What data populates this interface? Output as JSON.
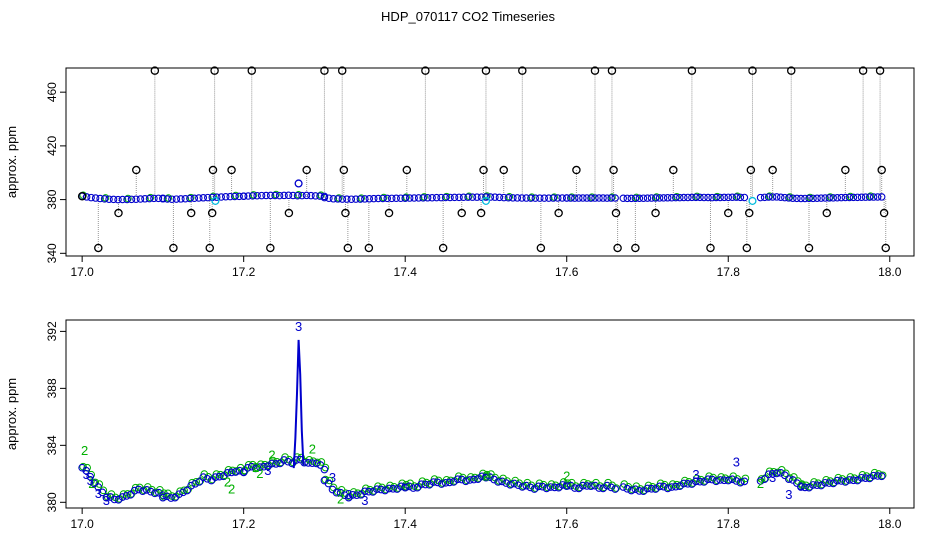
{
  "title": "HDP_070117  CO2 Timeseries",
  "colors": {
    "raw": "#000000",
    "blue": "#0000cc",
    "green": "#00b000",
    "cyan": "#00bbdd",
    "line": "#999999"
  },
  "chart_data": [
    {
      "type": "scatter",
      "panel": "top",
      "ylabel": "approx. ppm",
      "xlim": [
        16.98,
        18.03
      ],
      "ylim": [
        338,
        478
      ],
      "xticks": [
        17.0,
        17.2,
        17.4,
        17.6,
        17.8,
        18.0
      ],
      "xtick_labels": [
        "17.0",
        "17.2",
        "17.4",
        "17.6",
        "17.8",
        "18.0"
      ],
      "yticks": [
        340,
        380,
        420,
        460
      ],
      "ytick_labels": [
        "340",
        "380",
        "420",
        "460"
      ],
      "baseline_series": [
        {
          "x_start": 17.0,
          "x_end": 17.1,
          "y": [
            382.5,
            381.5,
            380.8,
            380.3,
            380.0,
            380.1,
            380.3,
            380.6,
            380.9,
            381.0
          ]
        },
        {
          "x_start": 17.1,
          "x_end": 17.2,
          "y": [
            380.6,
            380.3,
            380.5,
            380.8,
            381.2,
            381.5,
            381.8,
            382.1,
            382.3,
            382.5
          ]
        },
        {
          "x_start": 17.2,
          "x_end": 17.3,
          "y": [
            382.6,
            382.8,
            383.0,
            383.1,
            383.0,
            383.2,
            382.9,
            383.1,
            382.8,
            382.4
          ]
        },
        {
          "x_start": 17.3,
          "x_end": 17.4,
          "y": [
            381.5,
            380.6,
            380.4,
            380.3,
            380.4,
            380.6,
            380.8,
            380.9,
            381.0,
            381.1
          ]
        },
        {
          "x_start": 17.4,
          "x_end": 17.5,
          "y": [
            381.1,
            381.2,
            381.3,
            381.4,
            381.5,
            381.6,
            381.7,
            381.8,
            381.8,
            381.9
          ]
        },
        {
          "x_start": 17.5,
          "x_end": 17.6,
          "y": [
            382.0,
            381.8,
            381.5,
            381.3,
            381.2,
            381.1,
            381.1,
            381.1,
            381.2,
            381.2
          ]
        },
        {
          "x_start": 17.6,
          "x_end": 17.66,
          "y": [
            381.2,
            381.1,
            381.2,
            381.1,
            381.2,
            381.1,
            381.2
          ]
        },
        {
          "x_start": 17.67,
          "x_end": 17.82,
          "y": [
            381.0,
            380.9,
            381.0,
            381.1,
            381.2,
            381.3,
            381.4,
            381.5,
            381.6,
            381.7,
            381.6,
            381.5,
            381.6,
            381.7,
            381.8,
            381.6
          ]
        },
        {
          "x_start": 17.84,
          "x_end": 17.99,
          "y": [
            381.5,
            381.9,
            382.0,
            381.5,
            381.0,
            380.8,
            380.9,
            381.0,
            381.2,
            381.3,
            381.5,
            381.6,
            381.7,
            381.8,
            381.9,
            382.0
          ]
        }
      ],
      "raw_samples": [
        [
          17.0,
          382.5
        ],
        [
          17.02,
          344
        ],
        [
          17.045,
          370
        ],
        [
          17.067,
          402
        ],
        [
          17.09,
          476
        ],
        [
          17.113,
          344
        ],
        [
          17.135,
          370
        ],
        [
          17.158,
          344
        ],
        [
          17.161,
          370
        ],
        [
          17.162,
          402
        ],
        [
          17.164,
          476
        ],
        [
          17.185,
          402
        ],
        [
          17.21,
          476
        ],
        [
          17.233,
          344
        ],
        [
          17.256,
          370
        ],
        [
          17.278,
          402
        ],
        [
          17.3,
          476
        ],
        [
          17.322,
          476
        ],
        [
          17.324,
          402
        ],
        [
          17.326,
          370
        ],
        [
          17.329,
          344
        ],
        [
          17.355,
          344
        ],
        [
          17.38,
          370
        ],
        [
          17.402,
          402
        ],
        [
          17.425,
          476
        ],
        [
          17.447,
          344
        ],
        [
          17.47,
          370
        ],
        [
          17.494,
          370
        ],
        [
          17.497,
          402
        ],
        [
          17.5,
          476
        ],
        [
          17.522,
          402
        ],
        [
          17.545,
          476
        ],
        [
          17.568,
          344
        ],
        [
          17.59,
          370
        ],
        [
          17.612,
          402
        ],
        [
          17.635,
          476
        ],
        [
          17.656,
          476
        ],
        [
          17.658,
          402
        ],
        [
          17.661,
          370
        ],
        [
          17.663,
          344
        ],
        [
          17.685,
          344
        ],
        [
          17.71,
          370
        ],
        [
          17.732,
          402
        ],
        [
          17.755,
          476
        ],
        [
          17.778,
          344
        ],
        [
          17.8,
          370
        ],
        [
          17.823,
          344
        ],
        [
          17.826,
          370
        ],
        [
          17.828,
          402
        ],
        [
          17.83,
          476
        ],
        [
          17.855,
          402
        ],
        [
          17.878,
          476
        ],
        [
          17.9,
          344
        ],
        [
          17.922,
          370
        ],
        [
          17.945,
          402
        ],
        [
          17.967,
          476
        ],
        [
          17.988,
          476
        ],
        [
          17.99,
          402
        ],
        [
          17.993,
          370
        ],
        [
          17.995,
          344
        ]
      ],
      "blue_outliers": [
        [
          17.268,
          392
        ]
      ],
      "cyan_points": [
        [
          17.165,
          379
        ],
        [
          17.5,
          379
        ],
        [
          17.83,
          379
        ]
      ]
    },
    {
      "type": "scatter",
      "panel": "bottom",
      "ylabel": "approx. ppm",
      "xlim": [
        16.98,
        18.03
      ],
      "ylim": [
        379.6,
        392.8
      ],
      "xticks": [
        17.0,
        17.2,
        17.4,
        17.6,
        17.8,
        18.0
      ],
      "xtick_labels": [
        "17.0",
        "17.2",
        "17.4",
        "17.6",
        "17.8",
        "18.0"
      ],
      "yticks": [
        380,
        384,
        388,
        392
      ],
      "ytick_labels": [
        "380",
        "384",
        "388",
        "392"
      ],
      "marker_symbol_blue": "o",
      "marker_symbol_green": "o",
      "segments": [
        {
          "x_start": 17.0,
          "x_end": 17.1,
          "y": [
            382.5,
            381.8,
            381.0,
            380.4,
            380.2,
            380.3,
            380.6,
            380.9,
            380.8,
            380.7,
            380.5
          ]
        },
        {
          "x_start": 17.1,
          "x_end": 17.2,
          "y": [
            380.4,
            380.3,
            380.5,
            380.9,
            381.3,
            381.7,
            381.6,
            381.8,
            382.0,
            382.2,
            382.1
          ]
        },
        {
          "x_start": 17.2,
          "x_end": 17.3,
          "y": [
            382.2,
            382.5,
            382.4,
            382.6,
            382.7,
            382.9,
            382.8,
            383.0,
            382.7,
            382.8,
            382.3
          ]
        },
        {
          "x_start": 17.3,
          "x_end": 17.4,
          "y": [
            381.6,
            380.9,
            380.6,
            380.4,
            380.5,
            380.7,
            380.8,
            380.9,
            380.9,
            381.0,
            381.1
          ]
        },
        {
          "x_start": 17.4,
          "x_end": 17.5,
          "y": [
            381.1,
            381.0,
            381.2,
            381.3,
            381.4,
            381.3,
            381.5,
            381.6,
            381.5,
            381.7,
            381.8
          ]
        },
        {
          "x_start": 17.5,
          "x_end": 17.6,
          "y": [
            381.8,
            381.6,
            381.4,
            381.3,
            381.2,
            381.1,
            381.0,
            381.1,
            381.0,
            381.1,
            381.2
          ]
        },
        {
          "x_start": 17.6,
          "x_end": 17.66,
          "y": [
            381.2,
            381.0,
            381.1,
            381.2,
            381.0,
            381.1,
            381.0
          ]
        },
        {
          "x_start": 17.67,
          "x_end": 17.82,
          "y": [
            381.0,
            380.9,
            380.8,
            380.9,
            381.0,
            381.1,
            381.0,
            381.2,
            381.3,
            381.4,
            381.5,
            381.6,
            381.5,
            381.6,
            381.5,
            381.4
          ]
        },
        {
          "x_start": 17.84,
          "x_end": 17.89,
          "y": [
            381.5,
            381.9,
            382.1,
            381.9,
            381.5,
            381.2
          ]
        },
        {
          "x_start": 17.89,
          "x_end": 17.99,
          "y": [
            381.0,
            381.1,
            381.2,
            381.3,
            381.4,
            381.5,
            381.5,
            381.6,
            381.7,
            381.8,
            381.9
          ]
        }
      ],
      "spike_line": [
        [
          17.262,
          382.4
        ],
        [
          17.264,
          384.5
        ],
        [
          17.266,
          387.6
        ],
        [
          17.268,
          391.4
        ],
        [
          17.27,
          389.0
        ],
        [
          17.272,
          385.0
        ],
        [
          17.274,
          382.6
        ]
      ],
      "labels_blue": [
        {
          "x": 17.268,
          "y": 392.3,
          "text": "3"
        },
        {
          "x": 17.005,
          "y": 381.9,
          "text": "3"
        },
        {
          "x": 17.01,
          "y": 381.5,
          "text": "3"
        },
        {
          "x": 17.02,
          "y": 380.6,
          "text": "3"
        },
        {
          "x": 17.03,
          "y": 380.1,
          "text": "3"
        },
        {
          "x": 17.23,
          "y": 382.2,
          "text": "3"
        },
        {
          "x": 17.31,
          "y": 381.7,
          "text": "3"
        },
        {
          "x": 17.33,
          "y": 380.5,
          "text": "3"
        },
        {
          "x": 17.35,
          "y": 380.1,
          "text": "3"
        },
        {
          "x": 17.76,
          "y": 381.9,
          "text": "3"
        },
        {
          "x": 17.81,
          "y": 382.8,
          "text": "3"
        },
        {
          "x": 17.855,
          "y": 381.7,
          "text": "3"
        },
        {
          "x": 17.875,
          "y": 380.5,
          "text": "3"
        }
      ],
      "labels_green": [
        {
          "x": 17.003,
          "y": 383.6,
          "text": "2"
        },
        {
          "x": 17.012,
          "y": 381.3,
          "text": "2"
        },
        {
          "x": 17.18,
          "y": 381.4,
          "text": "2"
        },
        {
          "x": 17.185,
          "y": 380.9,
          "text": "2"
        },
        {
          "x": 17.215,
          "y": 382.4,
          "text": "2"
        },
        {
          "x": 17.22,
          "y": 382.0,
          "text": "2"
        },
        {
          "x": 17.235,
          "y": 383.3,
          "text": "2"
        },
        {
          "x": 17.285,
          "y": 383.7,
          "text": "2"
        },
        {
          "x": 17.32,
          "y": 380.2,
          "text": "2"
        },
        {
          "x": 17.5,
          "y": 381.8,
          "text": "2"
        },
        {
          "x": 17.6,
          "y": 381.8,
          "text": "2"
        },
        {
          "x": 17.84,
          "y": 381.3,
          "text": "2"
        }
      ]
    }
  ]
}
